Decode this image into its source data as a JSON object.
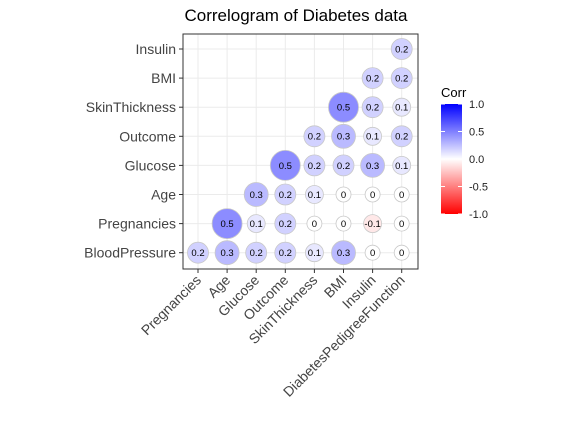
{
  "chart_data": {
    "type": "heatmap",
    "title": "Correlogram of Diabetes data",
    "x_labels": [
      "Pregnancies",
      "Age",
      "Glucose",
      "Outcome",
      "SkinThickness",
      "BMI",
      "Insulin",
      "DiabetesPedigreeFunction"
    ],
    "y_labels": [
      "Insulin",
      "BMI",
      "SkinThickness",
      "Outcome",
      "Glucose",
      "Age",
      "Pregnancies",
      "BloodPressure"
    ],
    "cells": [
      {
        "x": "DiabetesPedigreeFunction",
        "y": "Insulin",
        "value": 0.2,
        "label": "0.2"
      },
      {
        "x": "Insulin",
        "y": "BMI",
        "value": 0.2,
        "label": "0.2"
      },
      {
        "x": "DiabetesPedigreeFunction",
        "y": "BMI",
        "value": 0.2,
        "label": "0.2"
      },
      {
        "x": "BMI",
        "y": "SkinThickness",
        "value": 0.5,
        "label": "0.5"
      },
      {
        "x": "Insulin",
        "y": "SkinThickness",
        "value": 0.2,
        "label": "0.2"
      },
      {
        "x": "DiabetesPedigreeFunction",
        "y": "SkinThickness",
        "value": 0.1,
        "label": "0.1"
      },
      {
        "x": "SkinThickness",
        "y": "Outcome",
        "value": 0.2,
        "label": "0.2"
      },
      {
        "x": "BMI",
        "y": "Outcome",
        "value": 0.3,
        "label": "0.3"
      },
      {
        "x": "Insulin",
        "y": "Outcome",
        "value": 0.1,
        "label": "0.1"
      },
      {
        "x": "DiabetesPedigreeFunction",
        "y": "Outcome",
        "value": 0.2,
        "label": "0.2"
      },
      {
        "x": "Outcome",
        "y": "Glucose",
        "value": 0.5,
        "label": "0.5"
      },
      {
        "x": "SkinThickness",
        "y": "Glucose",
        "value": 0.2,
        "label": "0.2"
      },
      {
        "x": "BMI",
        "y": "Glucose",
        "value": 0.2,
        "label": "0.2"
      },
      {
        "x": "Insulin",
        "y": "Glucose",
        "value": 0.3,
        "label": "0.3"
      },
      {
        "x": "DiabetesPedigreeFunction",
        "y": "Glucose",
        "value": 0.1,
        "label": "0.1"
      },
      {
        "x": "Glucose",
        "y": "Age",
        "value": 0.3,
        "label": "0.3"
      },
      {
        "x": "Outcome",
        "y": "Age",
        "value": 0.2,
        "label": "0.2"
      },
      {
        "x": "SkinThickness",
        "y": "Age",
        "value": 0.1,
        "label": "0.1"
      },
      {
        "x": "BMI",
        "y": "Age",
        "value": 0,
        "label": "0"
      },
      {
        "x": "Insulin",
        "y": "Age",
        "value": 0,
        "label": "0"
      },
      {
        "x": "DiabetesPedigreeFunction",
        "y": "Age",
        "value": 0,
        "label": "0"
      },
      {
        "x": "Age",
        "y": "Pregnancies",
        "value": 0.5,
        "label": "0.5"
      },
      {
        "x": "Glucose",
        "y": "Pregnancies",
        "value": 0.1,
        "label": "0.1"
      },
      {
        "x": "Outcome",
        "y": "Pregnancies",
        "value": 0.2,
        "label": "0.2"
      },
      {
        "x": "SkinThickness",
        "y": "Pregnancies",
        "value": 0,
        "label": "0"
      },
      {
        "x": "BMI",
        "y": "Pregnancies",
        "value": 0,
        "label": "0"
      },
      {
        "x": "Insulin",
        "y": "Pregnancies",
        "value": -0.1,
        "label": "-0.1"
      },
      {
        "x": "DiabetesPedigreeFunction",
        "y": "Pregnancies",
        "value": 0,
        "label": "0"
      },
      {
        "x": "Pregnancies",
        "y": "BloodPressure",
        "value": 0.2,
        "label": "0.2"
      },
      {
        "x": "Age",
        "y": "BloodPressure",
        "value": 0.3,
        "label": "0.3"
      },
      {
        "x": "Glucose",
        "y": "BloodPressure",
        "value": 0.2,
        "label": "0.2"
      },
      {
        "x": "Outcome",
        "y": "BloodPressure",
        "value": 0.2,
        "label": "0.2"
      },
      {
        "x": "SkinThickness",
        "y": "BloodPressure",
        "value": 0.1,
        "label": "0.1"
      },
      {
        "x": "BMI",
        "y": "BloodPressure",
        "value": 0.3,
        "label": "0.3"
      },
      {
        "x": "Insulin",
        "y": "BloodPressure",
        "value": 0,
        "label": "0"
      },
      {
        "x": "DiabetesPedigreeFunction",
        "y": "BloodPressure",
        "value": 0,
        "label": "0"
      }
    ],
    "legend": {
      "title": "Corr",
      "ticks": [
        1.0,
        0.5,
        0.0,
        -0.5,
        -1.0
      ],
      "tick_labels": [
        "1.0",
        "0.5",
        "0.0",
        "-0.5",
        "-1.0"
      ],
      "range": [
        -1,
        1
      ],
      "placement": "right"
    },
    "colors": {
      "low": "#ff0000",
      "mid": "#ffffff",
      "high": "#0000ff",
      "grid": "#ebebeb",
      "panel_border": "#333333"
    },
    "grid": true
  }
}
